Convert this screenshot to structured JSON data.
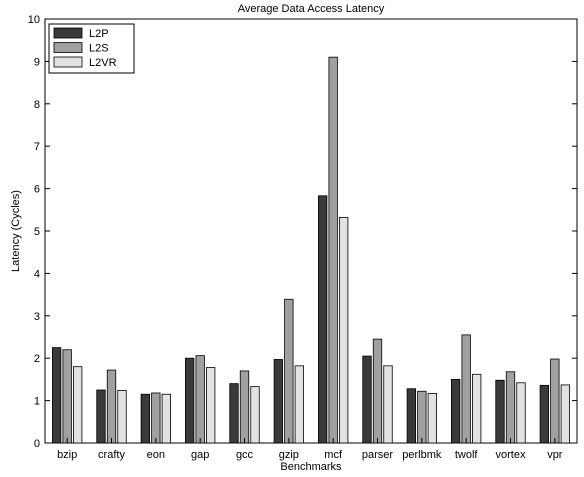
{
  "chart_data": {
    "type": "bar",
    "title": "Average Data Access Latency",
    "xlabel": "Benchmarks",
    "ylabel": "Latency (Cycles)",
    "ylim": [
      0,
      10
    ],
    "yticks": [
      0,
      1,
      2,
      3,
      4,
      5,
      6,
      7,
      8,
      9,
      10
    ],
    "grid": false,
    "legend_position": "top-left",
    "categories": [
      "bzip",
      "crafty",
      "eon",
      "gap",
      "gcc",
      "gzip",
      "mcf",
      "parser",
      "perlbmk",
      "twolf",
      "vortex",
      "vpr"
    ],
    "series": [
      {
        "name": "L2P",
        "color": "#3a3a3a",
        "values": [
          2.25,
          1.25,
          1.15,
          2.0,
          1.4,
          1.97,
          5.83,
          2.05,
          1.28,
          1.5,
          1.48,
          1.36
        ]
      },
      {
        "name": "L2S",
        "color": "#a0a0a0",
        "values": [
          2.2,
          1.72,
          1.18,
          2.06,
          1.7,
          3.39,
          9.1,
          2.45,
          1.22,
          2.55,
          1.68,
          1.98
        ]
      },
      {
        "name": "L2VR",
        "color": "#e2e2e2",
        "values": [
          1.8,
          1.24,
          1.15,
          1.78,
          1.33,
          1.82,
          5.32,
          1.82,
          1.17,
          1.62,
          1.42,
          1.37
        ]
      }
    ]
  }
}
